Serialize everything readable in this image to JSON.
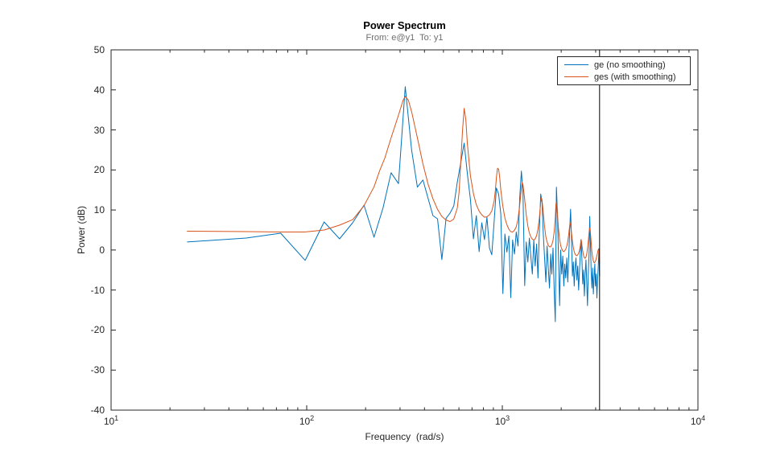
{
  "figure": {
    "title": "Power Spectrum",
    "subtitle": "From: e@y1  To: y1"
  },
  "axes": {
    "xlabel": "Frequency  (rad/s)",
    "ylabel": "Power (dB)",
    "x_tick_base": "10",
    "x_tick_exponents": [
      1,
      2,
      3,
      4
    ],
    "y_ticks": [
      50,
      40,
      30,
      20,
      10,
      0,
      -10,
      -20,
      -30,
      -40
    ],
    "axis_color": "#262626",
    "tick_label_color": "#262626"
  },
  "legend": {
    "items": [
      {
        "label": "ge (no smoothing)",
        "color": "#0072BD"
      },
      {
        "label": "ges (with smoothing)",
        "color": "#D95319"
      }
    ]
  },
  "chart_data": {
    "type": "line",
    "title": "Power Spectrum",
    "subtitle": "From: e@y1  To: y1",
    "xlabel": "Frequency  (rad/s)",
    "ylabel": "Power (dB)",
    "x_scale": "log",
    "xlim": [
      10,
      10000
    ],
    "ylim": [
      -40,
      50
    ],
    "grid": false,
    "legend_position": "top-right",
    "nyquist_line_freq": 3141.59,
    "nyquist_line_color": "#000000",
    "series": [
      {
        "name": "ge (no smoothing)",
        "color": "#0072BD",
        "x_mode": "linear_grid",
        "x_start": 24.5437,
        "x_step": 24.5437,
        "y": [
          2.0,
          3.0,
          4.2,
          -2.6,
          7.0,
          2.8,
          6.8,
          11.2,
          3.2,
          10.5,
          19.3,
          16.6,
          40.8,
          25.0,
          15.7,
          17.5,
          12.9,
          8.6,
          7.8,
          -2.4,
          7.9,
          9.2,
          11.0,
          17.0,
          22.0,
          26.7,
          19.0,
          12.6,
          2.8,
          8.6,
          -0.4,
          6.8,
          2.6,
          8.2,
          0.5,
          -1.2,
          7.0,
          15.5,
          14.0,
          9.0,
          -10.9,
          4.0,
          -0.5,
          3.5,
          -11.9,
          2.5,
          -1.0,
          4.5,
          1.0,
          13.0,
          19.7,
          14.0,
          -8.9,
          2.0,
          -3.0,
          3.0,
          -1.5,
          -6.0,
          2.5,
          -4.0,
          1.5,
          -7.0,
          5.0,
          14.0,
          12.0,
          4.0,
          -2.0,
          -8.0,
          1.0,
          -4.5,
          -9.5,
          -1.0,
          -6.0,
          0.5,
          -10.0,
          -17.9,
          15.7,
          9.0,
          -3.0,
          -13.9,
          0.0,
          -6.0,
          -1.5,
          -9.0,
          -3.5,
          -7.0,
          -2.0,
          -8.0,
          -1.5,
          4.5,
          10.2,
          2.5,
          -6.5,
          -3.0,
          -9.0,
          -4.5,
          -2.0,
          -7.5,
          -4.0,
          -10.0,
          -5.5,
          -1.0,
          2.6,
          -2.5,
          -8.5,
          -5.0,
          -11.5,
          -6.0,
          -2.5,
          -8.0,
          -13.9,
          -6.5,
          -1.5,
          8.4,
          1.5,
          -5.5,
          -9.5,
          -4.5,
          -11.0,
          -7.0,
          -3.5,
          -9.0,
          -6.0,
          -12.0,
          -7.5,
          -4.5,
          0.3,
          -6.5
        ]
      },
      {
        "name": "ges (with smoothing)",
        "color": "#D95319",
        "x": [
          24.5,
          49,
          74,
          98,
          123,
          147,
          172,
          196,
          221,
          236,
          251,
          270,
          295,
          311,
          319,
          331,
          344,
          368,
          393,
          417,
          442,
          466,
          491,
          515,
          540,
          564,
          589,
          601,
          613,
          626,
          638,
          651,
          663,
          687,
          712,
          736,
          761,
          785,
          810,
          834,
          859,
          884,
          908,
          921,
          933,
          945,
          957,
          970,
          982,
          1006,
          1031,
          1055,
          1080,
          1104,
          1129,
          1153,
          1178,
          1202,
          1227,
          1251,
          1263,
          1276,
          1300,
          1325,
          1350,
          1374,
          1399,
          1423,
          1448,
          1472,
          1497,
          1521,
          1546,
          1570,
          1583,
          1595,
          1619,
          1644,
          1668,
          1693,
          1717,
          1742,
          1767,
          1791,
          1816,
          1840,
          1865,
          1880,
          1889,
          1902,
          1914,
          1938,
          1963,
          1987,
          2012,
          2036,
          2061,
          2085,
          2110,
          2135,
          2159,
          2184,
          2208,
          2221,
          2233,
          2257,
          2282,
          2306,
          2331,
          2355,
          2380,
          2404,
          2429,
          2454,
          2478,
          2503,
          2515,
          2527,
          2540,
          2552,
          2576,
          2601,
          2625,
          2650,
          2674,
          2699,
          2723,
          2748,
          2772,
          2790,
          2803,
          2815,
          2840,
          2865,
          2889,
          2914,
          2938,
          2963,
          2987,
          3012,
          3036,
          3061,
          3085,
          3105,
          3119,
          3131,
          3141
        ],
        "y": [
          4.7,
          4.6,
          4.5,
          4.5,
          5.0,
          6.2,
          7.6,
          11.0,
          15.8,
          19.8,
          23.0,
          28.0,
          33.8,
          37.4,
          38.4,
          37.4,
          34.5,
          28.0,
          21.5,
          16.5,
          12.8,
          10.2,
          8.4,
          7.5,
          7.1,
          7.7,
          10.5,
          14.5,
          22.0,
          30.0,
          35.4,
          32.5,
          26.5,
          18.5,
          14.0,
          11.3,
          9.7,
          8.8,
          8.2,
          8.3,
          8.8,
          9.8,
          12.2,
          14.8,
          18.2,
          20.4,
          20.2,
          18.0,
          15.0,
          11.0,
          8.0,
          6.3,
          5.2,
          4.6,
          4.5,
          4.9,
          5.8,
          7.6,
          11.2,
          15.2,
          16.9,
          16.3,
          12.8,
          8.8,
          6.0,
          4.3,
          3.3,
          2.7,
          2.5,
          2.8,
          3.6,
          5.2,
          8.0,
          11.8,
          13.0,
          12.5,
          9.5,
          5.8,
          3.4,
          2.0,
          1.2,
          0.8,
          0.8,
          1.3,
          2.4,
          4.5,
          8.0,
          11.5,
          12.0,
          11.0,
          9.0,
          5.2,
          2.6,
          1.1,
          0.3,
          -0.2,
          -0.4,
          -0.2,
          0.2,
          0.9,
          2.0,
          3.8,
          6.0,
          6.8,
          6.4,
          4.4,
          2.2,
          0.6,
          -0.4,
          -1.0,
          -1.3,
          -1.4,
          -1.2,
          -0.8,
          -0.2,
          0.9,
          1.8,
          2.6,
          2.1,
          1.2,
          -0.3,
          -1.3,
          -1.9,
          -2.1,
          -1.8,
          -1.1,
          0.2,
          2.0,
          4.0,
          5.4,
          5.5,
          4.9,
          2.4,
          -0.1,
          -1.6,
          -2.6,
          -3.1,
          -3.2,
          -2.9,
          -2.4,
          -1.7,
          -0.9,
          -0.1,
          0.3,
          0.1,
          -1.6,
          -3.2
        ]
      }
    ]
  }
}
